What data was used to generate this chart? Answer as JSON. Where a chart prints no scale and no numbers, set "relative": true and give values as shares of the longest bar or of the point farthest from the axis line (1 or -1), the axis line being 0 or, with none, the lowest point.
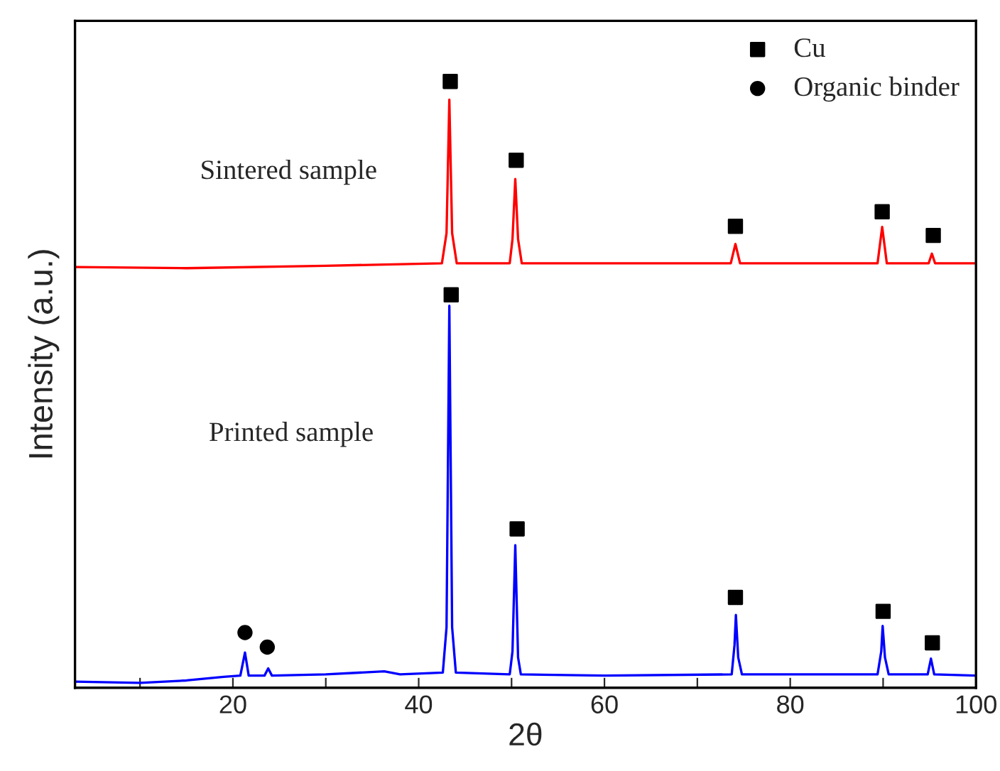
{
  "chart_data": {
    "type": "line",
    "xlabel": "2θ",
    "ylabel": "Intensity (a.u.)",
    "relative": true,
    "xlim": [
      3,
      100
    ],
    "xticks": [
      {
        "value": 10,
        "label": null
      },
      20,
      {
        "value": 30,
        "label": null
      },
      40,
      {
        "value": 50,
        "label": null
      },
      60,
      {
        "value": 70,
        "label": null
      },
      80,
      {
        "value": 90,
        "label": null
      },
      100
    ],
    "legend": "top right",
    "grid": false,
    "annotations": [
      "Sintered sample",
      "Printed sample"
    ],
    "series": [
      {
        "color": "#ff0000",
        "x": [
          3,
          15,
          30,
          42.5,
          43.0,
          43.3,
          43.6,
          44.1,
          49.8,
          50.1,
          50.4,
          50.7,
          51.1,
          60,
          73.6,
          74.1,
          74.6,
          89.4,
          89.9,
          90.4,
          94.9,
          95.25,
          95.6,
          100
        ],
        "values": [
          0.694,
          0.692,
          0.696,
          0.7,
          0.75,
          0.97,
          0.75,
          0.7,
          0.7,
          0.74,
          0.839,
          0.74,
          0.7,
          0.7,
          0.7,
          0.732,
          0.7,
          0.7,
          0.76,
          0.7,
          0.7,
          0.716,
          0.7,
          0.7
        ]
      },
      {
        "color": "#0000ff",
        "x": [
          3,
          10,
          15,
          19,
          20.8,
          21.3,
          21.7,
          23.4,
          23.8,
          24.2,
          30,
          36.3,
          38,
          42.6,
          43.0,
          43.3,
          43.6,
          44.0,
          49.8,
          50.1,
          50.4,
          50.7,
          51.0,
          60,
          73.7,
          74.0,
          74.15,
          74.4,
          74.8,
          89.4,
          89.8,
          89.95,
          90.2,
          90.6,
          94.8,
          95.15,
          95.5,
          100
        ],
        "values": [
          0.01,
          0.008,
          0.012,
          0.018,
          0.02,
          0.058,
          0.02,
          0.02,
          0.032,
          0.02,
          0.022,
          0.027,
          0.022,
          0.025,
          0.1,
          0.63,
          0.1,
          0.025,
          0.022,
          0.06,
          0.235,
          0.05,
          0.022,
          0.02,
          0.022,
          0.07,
          0.12,
          0.05,
          0.022,
          0.022,
          0.06,
          0.102,
          0.05,
          0.022,
          0.022,
          0.048,
          0.022,
          0.02
        ]
      },
      {
        "name": "Cu",
        "type": "scatter",
        "marker": "square",
        "color": "#000000",
        "x": [
          43.4,
          50.5,
          74.1,
          89.9,
          95.4,
          43.5,
          50.6,
          74.1,
          90.0,
          95.3
        ],
        "values": [
          1.0,
          0.87,
          0.761,
          0.785,
          0.746,
          0.648,
          0.262,
          0.149,
          0.126,
          0.074
        ]
      },
      {
        "name": "Organic binder",
        "type": "scatter",
        "marker": "circle",
        "color": "#000000",
        "x": [
          21.3,
          23.7
        ],
        "values": [
          0.091,
          0.067
        ]
      }
    ]
  }
}
